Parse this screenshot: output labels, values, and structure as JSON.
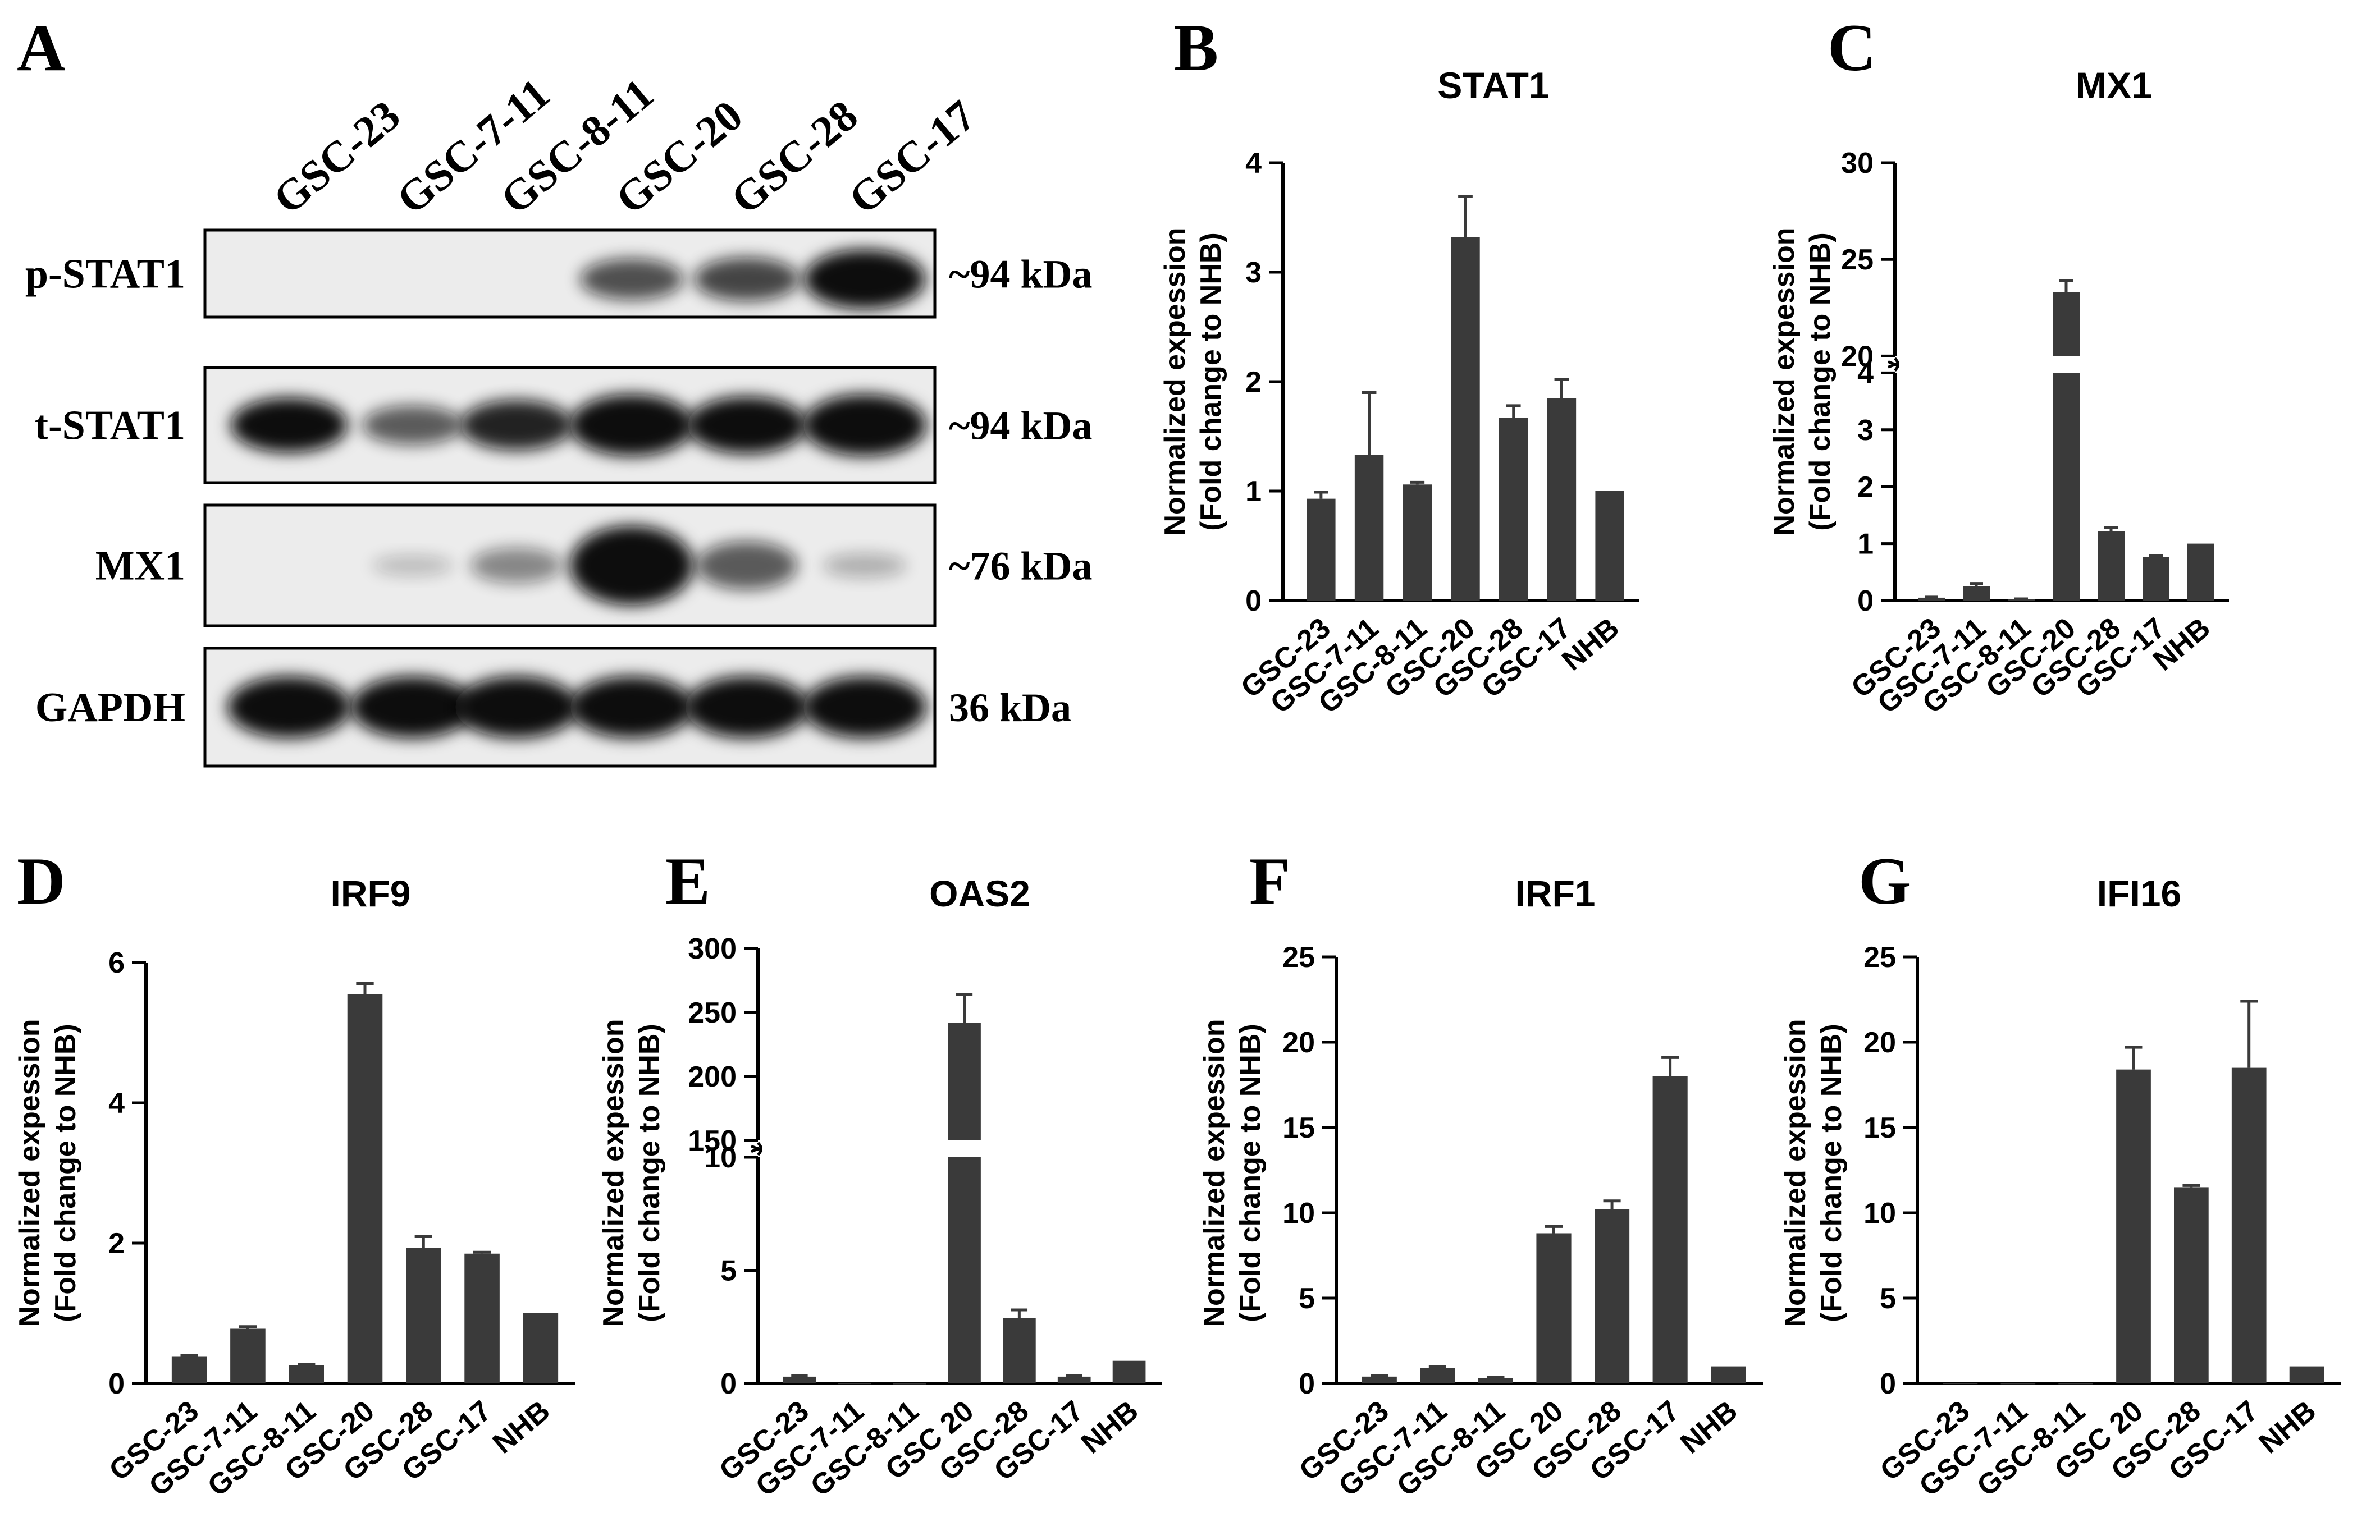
{
  "figure": {
    "panel_labels": [
      "A",
      "B",
      "C",
      "D",
      "E",
      "F",
      "G"
    ]
  },
  "western_blot": {
    "panel": "A",
    "lanes": [
      "GSC-23",
      "GSC-7-11",
      "GSC-8-11",
      "GSC-20",
      "GSC-28",
      "GSC-17"
    ],
    "rows": [
      {
        "label": "p-STAT1",
        "size": "~94 kDa",
        "intensity": [
          0.03,
          0.02,
          0.02,
          0.55,
          0.6,
          0.95
        ]
      },
      {
        "label": "t-STAT1",
        "size": "~94 kDa",
        "intensity": [
          0.85,
          0.5,
          0.75,
          1.0,
          0.9,
          1.0
        ]
      },
      {
        "label": "MX1",
        "size": "~76 kDa",
        "intensity": [
          0.02,
          0.06,
          0.3,
          1.0,
          0.5,
          0.12
        ]
      },
      {
        "label": "GAPDH",
        "size": "36 kDa",
        "intensity": [
          1.0,
          1.0,
          1.0,
          1.0,
          1.0,
          1.0
        ]
      }
    ],
    "colors": {
      "band": "#0a0a0a",
      "membrane": "#ececec"
    }
  },
  "y_axis_label": [
    "Normalized expession",
    "(Fold change to NHB)"
  ],
  "chart_data": [
    {
      "panel": "B",
      "type": "bar",
      "title": "STAT1",
      "categories": [
        "GSC-23",
        "GSC-7-11",
        "GSC-8-11",
        "GSC-20",
        "GSC-28",
        "GSC-17",
        "NHB"
      ],
      "values": [
        0.93,
        1.33,
        1.06,
        3.32,
        1.67,
        1.85,
        1.0
      ],
      "errors": [
        0.06,
        0.57,
        0.02,
        0.37,
        0.11,
        0.17,
        0
      ],
      "ylim": [
        0,
        4
      ],
      "ticks": [
        0,
        1,
        2,
        3,
        4
      ],
      "ylabel": "Normalized expession (Fold change to NHB)"
    },
    {
      "panel": "C",
      "type": "bar",
      "title": "MX1",
      "categories": [
        "GSC-23",
        "GSC-7-11",
        "GSC-8-11",
        "GSC-20",
        "GSC-28",
        "GSC-17",
        "NHB"
      ],
      "values": [
        0.05,
        0.25,
        0.02,
        23.3,
        1.22,
        0.76,
        1.0
      ],
      "errors": [
        0.01,
        0.05,
        0.01,
        0.6,
        0.06,
        0.03,
        0
      ],
      "ylim": [
        0,
        30
      ],
      "ticks": [
        0,
        1,
        2,
        3,
        4,
        20,
        25,
        30
      ],
      "axis_break": {
        "lower": [
          0,
          4
        ],
        "upper": [
          20,
          30
        ]
      },
      "ylabel": "Normalized expession (Fold change to NHB)"
    },
    {
      "panel": "D",
      "type": "bar",
      "title": "IRF9",
      "categories": [
        "GSC-23",
        "GSC-7-11",
        "GSC-8-11",
        "GSC-20",
        "GSC-28",
        "GSC-17",
        "NHB"
      ],
      "values": [
        0.38,
        0.78,
        0.26,
        5.55,
        1.93,
        1.85,
        1.0
      ],
      "errors": [
        0.02,
        0.03,
        0.01,
        0.15,
        0.17,
        0.02,
        0
      ],
      "ylim": [
        0,
        6
      ],
      "ticks": [
        0,
        2,
        4,
        6
      ],
      "ylabel": "Normalized expession (Fold change to NHB)"
    },
    {
      "panel": "E",
      "type": "bar",
      "title": "OAS2",
      "categories": [
        "GSC-23",
        "GSC-7-11",
        "GSC-8-11",
        "GSC 20",
        "GSC-28",
        "GSC-17",
        "NHB"
      ],
      "values": [
        0.3,
        0.02,
        0.01,
        242,
        2.9,
        0.3,
        1.0
      ],
      "errors": [
        0.05,
        0,
        0,
        22,
        0.35,
        0.05,
        0
      ],
      "ylim": [
        0,
        300
      ],
      "ticks": [
        0,
        5,
        10,
        150,
        200,
        250,
        300
      ],
      "axis_break": {
        "lower": [
          0,
          10
        ],
        "upper": [
          150,
          300
        ]
      },
      "ylabel": "Normalized expession (Fold change to NHB)"
    },
    {
      "panel": "F",
      "type": "bar",
      "title": "IRF1",
      "categories": [
        "GSC-23",
        "GSC-7-11",
        "GSC-8-11",
        "GSC 20",
        "GSC-28",
        "GSC-17",
        "NHB"
      ],
      "values": [
        0.4,
        0.9,
        0.3,
        8.8,
        10.2,
        18.0,
        1.0
      ],
      "errors": [
        0.05,
        0.1,
        0.05,
        0.4,
        0.5,
        1.1,
        0
      ],
      "ylim": [
        0,
        25
      ],
      "ticks": [
        0,
        5,
        10,
        15,
        20,
        25
      ],
      "ylabel": "Normalized expession (Fold change to NHB)"
    },
    {
      "panel": "G",
      "type": "bar",
      "title": "IFI16",
      "categories": [
        "GSC-23",
        "GSC-7-11",
        "GSC-8-11",
        "GSC 20",
        "GSC-28",
        "GSC-17",
        "NHB"
      ],
      "values": [
        0.03,
        0.02,
        0.02,
        18.4,
        11.5,
        18.5,
        1.0
      ],
      "errors": [
        0,
        0,
        0,
        1.3,
        0.1,
        3.9,
        0
      ],
      "ylim": [
        0,
        25
      ],
      "ticks": [
        0,
        5,
        10,
        15,
        20,
        25
      ],
      "ylabel": "Normalized expession (Fold change to NHB)"
    }
  ],
  "colors": {
    "bar": "#3a3a3a",
    "axis": "#000000",
    "text": "#000000"
  }
}
